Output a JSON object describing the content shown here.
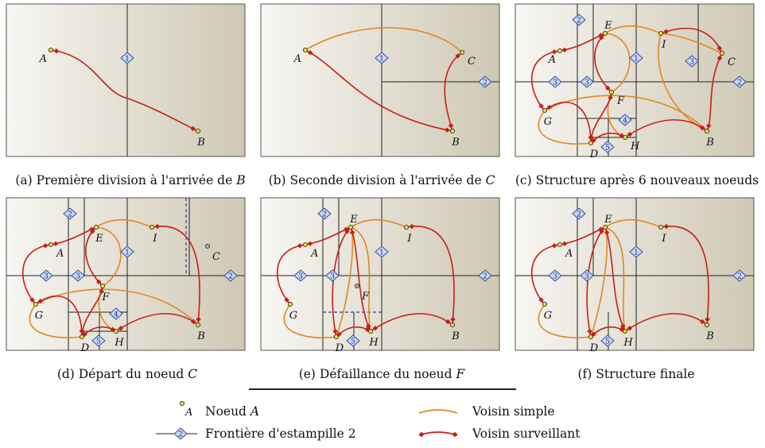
{
  "colors": {
    "panel_light": "#f7f6f2",
    "panel_dark": "#cfc8b4",
    "simple_edge": "#e0891f",
    "monitor_edge": "#c81e14",
    "node_fill": "#e8e020",
    "diamond_fill": "#c9d6f5",
    "diamond_stroke": "#2e4e9b",
    "dashed_line": "#3a5aa8"
  },
  "panels": [
    {
      "id": "a",
      "letter": "(a)",
      "caption": "Première division à l'arrivée de",
      "subject": "B"
    },
    {
      "id": "b",
      "letter": "(b)",
      "caption": "Seconde division à l'arrivée de",
      "subject": "C"
    },
    {
      "id": "c",
      "letter": "(c)",
      "caption": "Structure après 6 nouveaux noeuds",
      "subject": ""
    },
    {
      "id": "d",
      "letter": "(d)",
      "caption": "Départ du noeud",
      "subject": "C"
    },
    {
      "id": "e",
      "letter": "(e)",
      "caption": "Défaillance du noeud",
      "subject": "F"
    },
    {
      "id": "f",
      "letter": "(f)",
      "caption": "Structure finale",
      "subject": ""
    }
  ],
  "node_labels": {
    "A": "A",
    "B": "B",
    "C": "C",
    "D": "D",
    "E": "E",
    "F": "F",
    "G": "G",
    "H": "H",
    "I": "I"
  },
  "stamps": {
    "s1": "1",
    "s2": "2",
    "s3": "3",
    "s4": "4",
    "s5": "5"
  },
  "legend": {
    "node_sample": "A",
    "node_label": "Noeud",
    "node_subject": "A",
    "stamp_sample": "2",
    "stamp_label": "Frontière d'estampille 2",
    "simple_label": "Voisin simple",
    "monitor_label": "Voisin surveillant"
  }
}
